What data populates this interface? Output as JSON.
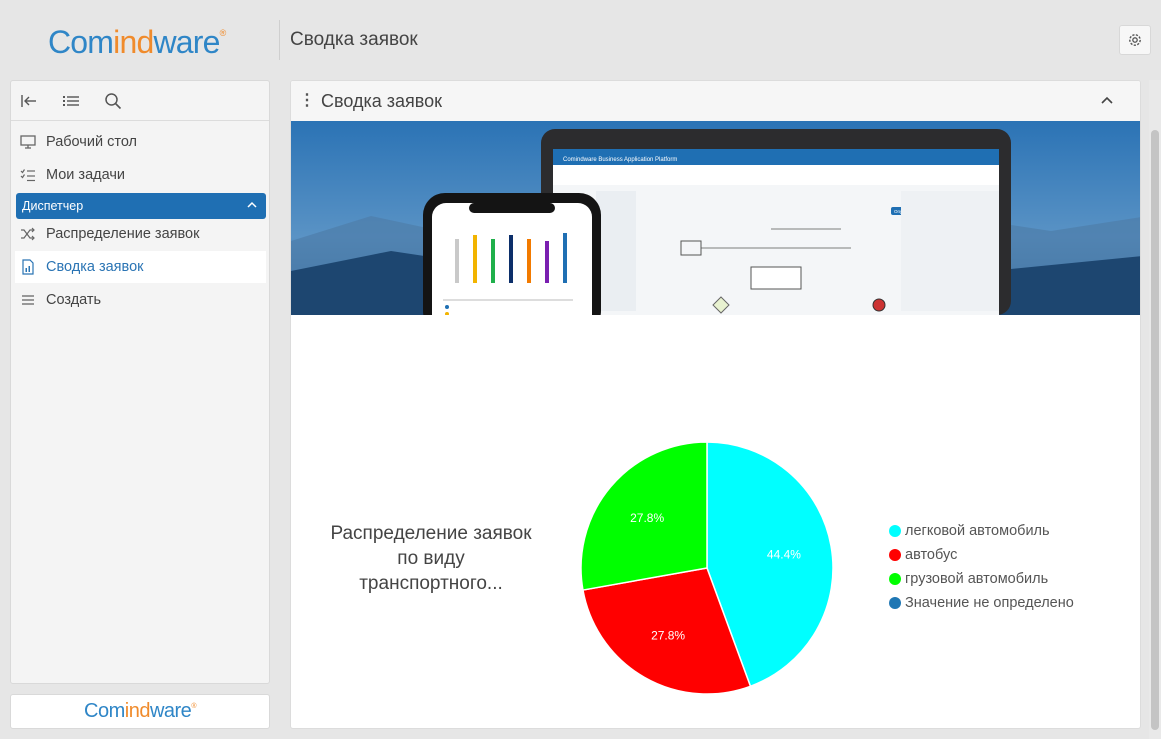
{
  "brand": {
    "part1": "Com",
    "part2": "ind",
    "part3": "ware",
    "mark": "®"
  },
  "header": {
    "title": "Сводка заявок"
  },
  "sidebar": {
    "tools": [
      "collapse-sidebar-icon",
      "list-icon",
      "search-icon"
    ],
    "items": [
      {
        "label": "Рабочий стол",
        "icon": "desktop-icon"
      },
      {
        "label": "Мои задачи",
        "icon": "task-list-icon"
      }
    ],
    "section": {
      "label": "Диспетчер",
      "expanded": true
    },
    "section_items": [
      {
        "label": "Распределение заявок",
        "icon": "shuffle-icon",
        "active": false
      },
      {
        "label": "Сводка заявок",
        "icon": "document-icon",
        "active": true
      },
      {
        "label": "Создать",
        "icon": "lines-icon",
        "active": false
      }
    ],
    "accent_color": "#1f6fb3"
  },
  "panel": {
    "title": "Сводка заявок",
    "banner": {
      "window_title": "Comindware Business Application Platform",
      "primary_button": "Опубликовать"
    }
  },
  "chart_data": {
    "type": "pie",
    "title": "Распределение заявок\nпо виду\nтранспортного...",
    "series": [
      {
        "name": "легковой автомобиль",
        "value": 44.4,
        "label": "44.4%",
        "color": "#00ffff"
      },
      {
        "name": "автобус",
        "value": 27.8,
        "label": "27.8%",
        "color": "#ff0000"
      },
      {
        "name": "грузовой автомобиль",
        "value": 27.8,
        "label": "27.8%",
        "color": "#00ff00"
      },
      {
        "name": "Значение не определено",
        "value": 0,
        "label": "",
        "color": "#1f77b4"
      }
    ],
    "legend_position": "right"
  }
}
